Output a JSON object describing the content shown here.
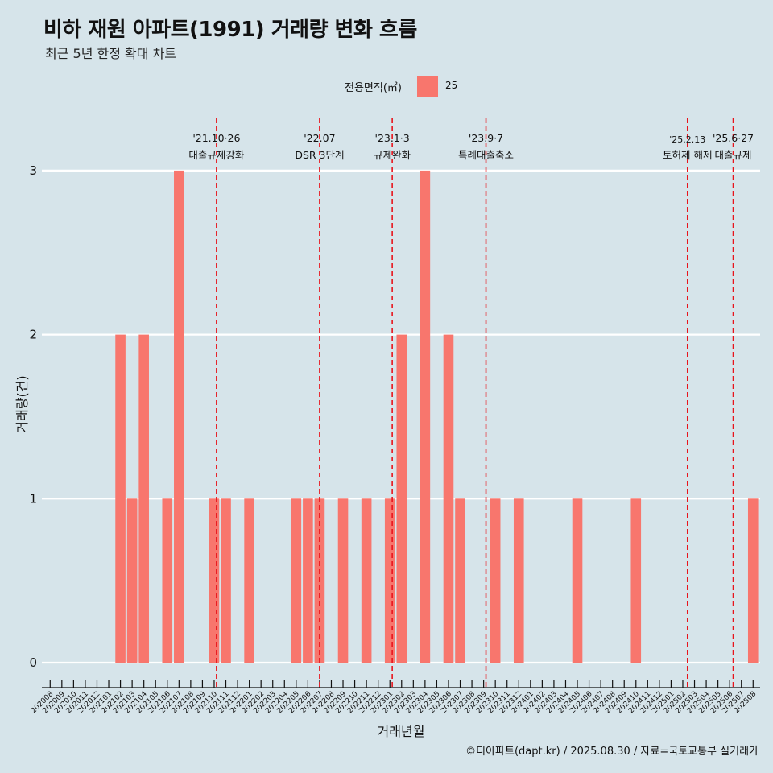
{
  "title": "비하 재원 아파트(1991) 거래량 변화 흐름",
  "subtitle": "최근 5년 한정 확대 차트",
  "legend": {
    "title": "전용면적(㎡)",
    "items": [
      {
        "label": "25",
        "color": "#f8766d"
      }
    ]
  },
  "caption": "©디아파트(dapt.kr) / 2025.08.30 / 자료=국토교통부 실거래가",
  "chart_data": {
    "type": "bar",
    "title": "비하 재원 아파트(1991) 거래량 변화 흐름",
    "subtitle": "최근 5년 한정 확대 차트",
    "xlabel": "거래년월",
    "ylabel": "거래량(건)",
    "ylim": [
      0,
      3
    ],
    "yticks": [
      0,
      1,
      2,
      3
    ],
    "bar_color": "#f8766d",
    "categories": [
      "202008",
      "202009",
      "202010",
      "202011",
      "202012",
      "202101",
      "202102",
      "202103",
      "202104",
      "202105",
      "202106",
      "202107",
      "202108",
      "202109",
      "202110",
      "202111",
      "202112",
      "202201",
      "202202",
      "202203",
      "202204",
      "202205",
      "202206",
      "202207",
      "202208",
      "202209",
      "202210",
      "202211",
      "202212",
      "202301",
      "202302",
      "202303",
      "202304",
      "202305",
      "202306",
      "202307",
      "202308",
      "202309",
      "202310",
      "202311",
      "202312",
      "202401",
      "202402",
      "202403",
      "202404",
      "202405",
      "202406",
      "202407",
      "202408",
      "202409",
      "202410",
      "202411",
      "202412",
      "202501",
      "202502",
      "202503",
      "202504",
      "202505",
      "202506",
      "202507",
      "202508"
    ],
    "series": [
      {
        "name": "25",
        "values": [
          0,
          0,
          0,
          0,
          0,
          0,
          2,
          1,
          2,
          0,
          1,
          3,
          0,
          0,
          1,
          1,
          0,
          1,
          0,
          0,
          0,
          1,
          1,
          1,
          0,
          1,
          0,
          1,
          0,
          1,
          2,
          0,
          3,
          0,
          2,
          1,
          0,
          0,
          1,
          0,
          1,
          0,
          0,
          0,
          0,
          1,
          0,
          0,
          0,
          0,
          1,
          0,
          0,
          0,
          0,
          0,
          0,
          0,
          0,
          0,
          1
        ]
      }
    ],
    "annotations": [
      {
        "date_label": "'21.10·26",
        "text": "대출규제강화",
        "index": 14.2
      },
      {
        "date_label": "'22.07",
        "text": "DSR 3단계",
        "index": 23.0
      },
      {
        "date_label": "'23.1·3",
        "text": "규제완화",
        "index": 29.2
      },
      {
        "date_label": "'23.9·7",
        "text": "특례대출축소",
        "index": 37.2
      },
      {
        "date_label": "'25.2.13",
        "text": "토허제 해제",
        "index": 54.4
      },
      {
        "date_label": "'25.6·27",
        "text": "대출규제",
        "index": 58.3
      }
    ]
  }
}
